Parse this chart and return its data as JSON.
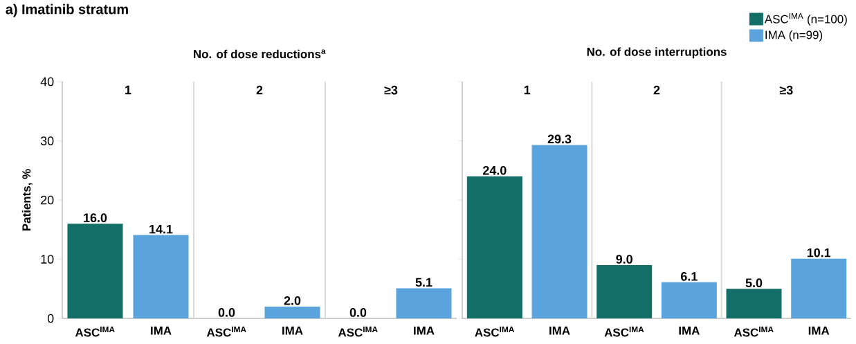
{
  "chart_data": [
    {
      "type": "bar",
      "title": "a) Imatinib stratum",
      "subtitle": "No. of dose reductions$^{a}$",
      "ylabel": "Patients, %",
      "categories": [
        "ASC$^{IMA}$",
        "IMA",
        "ASC$^{IMA}$",
        "IMA",
        "ASC$^{IMA}$",
        "IMA"
      ],
      "series": [
        {
          "color": "#136e68",
          "values": [
            16.0,
            null,
            0.0,
            null,
            0.0,
            null
          ],
          "value_labels": [
            "16.0",
            null,
            "0.0",
            null,
            "0.0",
            null
          ]
        },
        {
          "color": "#5ba3dc",
          "values": [
            null,
            14.1,
            null,
            2.0,
            null,
            5.1
          ],
          "value_labels": [
            null,
            "14.1",
            null,
            "2.0",
            null,
            "5.1"
          ]
        }
      ],
      "annotations": [
        "1",
        "2",
        "≥3"
      ],
      "ylim": [
        0,
        40
      ],
      "yticks": [
        0,
        10,
        20,
        30,
        40
      ],
      "grid": false
    },
    {
      "type": "bar",
      "subtitle": "No. of dose interruptions",
      "categories": [
        "ASC$^{IMA}$",
        "IMA",
        "ASC$^{IMA}$",
        "IMA",
        "ASC$^{IMA}$",
        "IMA"
      ],
      "series": [
        {
          "name": "ASC$^{IMA}$ (n=100)",
          "color": "#136e68",
          "values": [
            24.0,
            null,
            9.0,
            null,
            5.0,
            null
          ],
          "value_labels": [
            "24.0",
            null,
            "9.0",
            null,
            "5.0",
            null
          ]
        },
        {
          "name": "IMA (n=99)",
          "color": "#5ba3dc",
          "values": [
            null,
            29.3,
            null,
            6.1,
            null,
            10.1
          ],
          "value_labels": [
            null,
            "29.3",
            null,
            "6.1",
            null,
            "10.1"
          ]
        }
      ],
      "annotations": [
        "1",
        "2",
        "≥3"
      ],
      "ylim": [
        0,
        40
      ],
      "yticks": [
        0,
        10,
        20,
        30,
        40
      ],
      "tick_labels": "x",
      "grid": false,
      "legend": "top right"
    }
  ]
}
